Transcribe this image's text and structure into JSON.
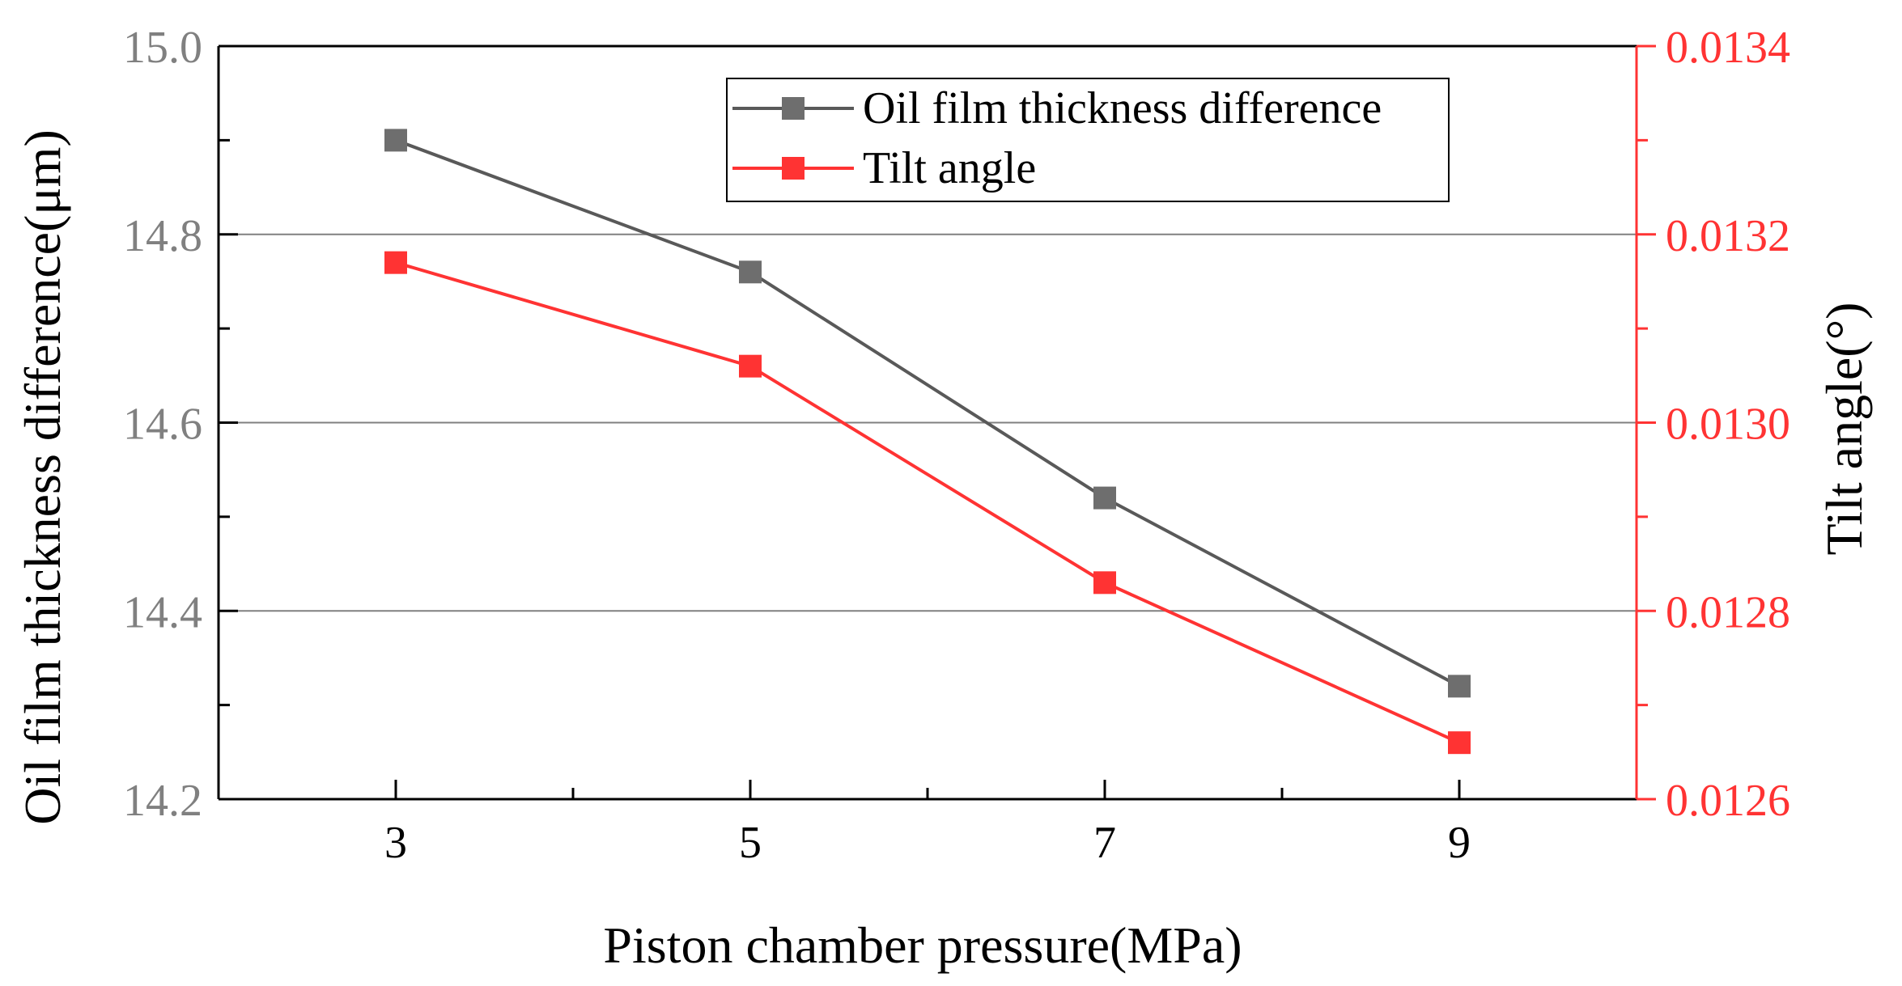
{
  "chart_data": {
    "type": "line",
    "xlabel": "Piston  chamber pressure(MPa)",
    "ylabel_left": "Oil film thickness difference(μm)",
    "ylabel_right": "Tilt angle(°)",
    "x": [
      3,
      5,
      7,
      9
    ],
    "xlim": [
      2,
      10
    ],
    "x_ticks": [
      "3",
      "5",
      "7",
      "9"
    ],
    "ylim_left": [
      14.2,
      15.0
    ],
    "y_ticks_left": [
      "14.2",
      "14.4",
      "14.6",
      "14.8",
      "15.0"
    ],
    "ylim_right": [
      0.0126,
      0.0134
    ],
    "y_ticks_right": [
      "0.0126",
      "0.0128",
      "0.0130",
      "0.0132",
      "0.0134"
    ],
    "grid": "horizontal",
    "legend_position": "top-right",
    "series": [
      {
        "name": "Oil film thickness difference",
        "axis": "left",
        "color": "#595959",
        "marker_color": "#6e6e6e",
        "values": [
          14.9,
          14.76,
          14.52,
          14.32
        ]
      },
      {
        "name": "Tilt angle",
        "axis": "right",
        "color": "#ff3333",
        "marker_color": "#ff3333",
        "values": [
          0.01317,
          0.01306,
          0.01283,
          0.01266
        ]
      }
    ]
  }
}
